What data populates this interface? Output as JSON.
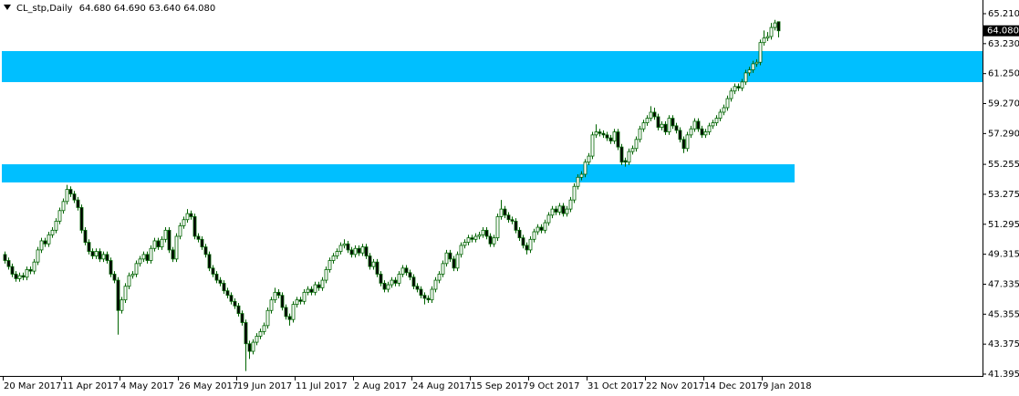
{
  "chart_data": {
    "type": "candlestick",
    "header": {
      "symbol": "CL_stp,Daily",
      "open": "64.680",
      "high": "64.690",
      "low": "63.640",
      "close": "64.080"
    },
    "last_price": {
      "value": 64.08,
      "label": "64.080"
    },
    "ylim": [
      41.395,
      65.21
    ],
    "yticks": [
      {
        "value": 65.21,
        "label": "65.210"
      },
      {
        "value": 63.23,
        "label": "63.230"
      },
      {
        "value": 61.25,
        "label": "61.250"
      },
      {
        "value": 59.27,
        "label": "59.270"
      },
      {
        "value": 57.29,
        "label": "57.290"
      },
      {
        "value": 55.255,
        "label": "55.255"
      },
      {
        "value": 53.275,
        "label": "53.275"
      },
      {
        "value": 51.295,
        "label": "51.295"
      },
      {
        "value": 49.315,
        "label": "49.315"
      },
      {
        "value": 47.335,
        "label": "47.335"
      },
      {
        "value": 45.355,
        "label": "45.355"
      },
      {
        "value": 43.375,
        "label": "43.375"
      },
      {
        "value": 41.395,
        "label": "41.395"
      }
    ],
    "up_color": "#ffffff",
    "down_color": "#000000",
    "line_color": "#006400",
    "zones": [
      {
        "from": 62.74,
        "to": 60.69,
        "color": "#00bfff"
      },
      {
        "from": 55.26,
        "to": 54.06,
        "color": "#00bfff"
      }
    ],
    "categories": [
      "20 Mar 2017",
      null,
      null,
      null,
      null,
      null,
      null,
      null,
      null,
      null,
      null,
      null,
      null,
      null,
      null,
      null,
      "11 Apr 2017",
      null,
      null,
      null,
      null,
      null,
      null,
      null,
      null,
      null,
      null,
      null,
      null,
      null,
      null,
      null,
      "4 May 2017",
      null,
      null,
      null,
      null,
      null,
      null,
      null,
      null,
      null,
      null,
      null,
      null,
      null,
      null,
      null,
      "26 May 2017",
      null,
      null,
      null,
      null,
      null,
      null,
      null,
      null,
      null,
      null,
      null,
      null,
      null,
      null,
      null,
      "19 Jun 2017",
      null,
      null,
      null,
      null,
      null,
      null,
      null,
      null,
      null,
      null,
      null,
      null,
      null,
      null,
      null,
      "11 Jul 2017",
      null,
      null,
      null,
      null,
      null,
      null,
      null,
      null,
      null,
      null,
      null,
      null,
      null,
      null,
      null,
      "2 Aug 2017",
      null,
      null,
      null,
      null,
      null,
      null,
      null,
      null,
      null,
      null,
      null,
      null,
      null,
      null,
      null,
      "24 Aug 2017",
      null,
      null,
      null,
      null,
      null,
      null,
      null,
      null,
      null,
      null,
      null,
      null,
      null,
      null,
      null,
      "15 Sep 2017",
      null,
      null,
      null,
      null,
      null,
      null,
      null,
      null,
      null,
      null,
      null,
      null,
      null,
      null,
      null,
      "9 Oct 2017",
      null,
      null,
      null,
      null,
      null,
      null,
      null,
      null,
      null,
      null,
      null,
      null,
      null,
      null,
      null,
      "31 Oct 2017",
      null,
      null,
      null,
      null,
      null,
      null,
      null,
      null,
      null,
      null,
      null,
      null,
      null,
      null,
      null,
      "22 Nov 2017",
      null,
      null,
      null,
      null,
      null,
      null,
      null,
      null,
      null,
      null,
      null,
      null,
      null,
      null,
      null,
      "14 Dec 2017",
      null,
      null,
      null,
      null,
      null,
      null,
      null,
      null,
      null,
      null,
      null,
      null,
      null,
      null,
      null,
      "9 Jan 2018",
      null,
      null,
      null,
      null
    ],
    "ohlc": [
      [
        49.3,
        49.5,
        48.7,
        48.9
      ],
      [
        48.9,
        49.1,
        48.3,
        48.5
      ],
      [
        48.5,
        48.7,
        47.8,
        48.0
      ],
      [
        48.0,
        48.2,
        47.5,
        47.7
      ],
      [
        47.7,
        48.1,
        47.5,
        47.9
      ],
      [
        47.9,
        48.1,
        47.6,
        47.8
      ],
      [
        47.8,
        48.5,
        47.6,
        48.3
      ],
      [
        48.3,
        48.5,
        48.0,
        48.2
      ],
      [
        48.2,
        49.0,
        48.0,
        48.8
      ],
      [
        48.8,
        49.8,
        48.6,
        49.6
      ],
      [
        49.6,
        50.4,
        49.4,
        50.2
      ],
      [
        50.2,
        50.4,
        49.8,
        50.0
      ],
      [
        50.0,
        50.8,
        49.8,
        50.6
      ],
      [
        50.6,
        51.1,
        50.4,
        50.9
      ],
      [
        50.9,
        51.7,
        50.7,
        51.5
      ],
      [
        51.5,
        52.4,
        51.3,
        52.2
      ],
      [
        52.2,
        53.0,
        52.0,
        52.8
      ],
      [
        52.8,
        53.9,
        52.6,
        53.6
      ],
      [
        53.6,
        53.8,
        53.1,
        53.3
      ],
      [
        53.3,
        53.5,
        52.7,
        52.9
      ],
      [
        52.9,
        53.1,
        52.2,
        52.4
      ],
      [
        52.4,
        52.6,
        50.7,
        50.9
      ],
      [
        50.9,
        51.1,
        49.9,
        50.1
      ],
      [
        50.1,
        50.3,
        49.3,
        49.5
      ],
      [
        49.5,
        49.7,
        49.0,
        49.2
      ],
      [
        49.2,
        49.7,
        49.0,
        49.5
      ],
      [
        49.5,
        49.7,
        48.8,
        49.0
      ],
      [
        49.0,
        49.5,
        48.8,
        49.3
      ],
      [
        49.3,
        49.5,
        48.7,
        48.9
      ],
      [
        48.9,
        49.1,
        47.8,
        48.0
      ],
      [
        48.0,
        48.2,
        47.4,
        47.6
      ],
      [
        47.6,
        47.8,
        44.0,
        45.6
      ],
      [
        45.6,
        46.5,
        45.4,
        46.3
      ],
      [
        46.3,
        47.4,
        46.1,
        47.2
      ],
      [
        47.2,
        48.1,
        47.0,
        47.9
      ],
      [
        47.9,
        48.2,
        47.7,
        48.0
      ],
      [
        48.0,
        48.9,
        47.8,
        48.7
      ],
      [
        48.7,
        49.2,
        48.5,
        49.0
      ],
      [
        49.0,
        49.5,
        48.8,
        49.3
      ],
      [
        49.3,
        49.5,
        48.7,
        48.9
      ],
      [
        48.9,
        49.9,
        48.7,
        49.7
      ],
      [
        49.7,
        50.4,
        49.5,
        50.2
      ],
      [
        50.2,
        50.4,
        49.6,
        49.8
      ],
      [
        49.8,
        50.5,
        49.6,
        50.3
      ],
      [
        50.3,
        51.1,
        50.1,
        50.9
      ],
      [
        50.9,
        51.1,
        49.4,
        49.6
      ],
      [
        49.6,
        49.8,
        48.8,
        49.0
      ],
      [
        49.0,
        50.7,
        48.8,
        50.5
      ],
      [
        50.5,
        51.4,
        50.3,
        51.2
      ],
      [
        51.2,
        51.8,
        51.0,
        51.6
      ],
      [
        51.6,
        52.3,
        51.4,
        52.0
      ],
      [
        52.0,
        52.2,
        51.6,
        51.8
      ],
      [
        51.8,
        52.0,
        50.3,
        50.5
      ],
      [
        50.5,
        50.7,
        50.1,
        50.3
      ],
      [
        50.3,
        50.5,
        49.6,
        49.8
      ],
      [
        49.8,
        50.0,
        49.1,
        49.3
      ],
      [
        49.3,
        49.5,
        48.2,
        48.4
      ],
      [
        48.4,
        48.6,
        47.8,
        48.0
      ],
      [
        48.0,
        48.2,
        47.4,
        47.6
      ],
      [
        47.6,
        47.8,
        47.2,
        47.4
      ],
      [
        47.4,
        47.6,
        46.7,
        46.9
      ],
      [
        46.9,
        47.1,
        46.4,
        46.6
      ],
      [
        46.6,
        46.8,
        46.0,
        46.2
      ],
      [
        46.2,
        46.4,
        45.7,
        45.9
      ],
      [
        45.9,
        46.1,
        45.2,
        45.4
      ],
      [
        45.4,
        45.6,
        44.6,
        44.8
      ],
      [
        44.8,
        45.0,
        41.6,
        43.4
      ],
      [
        43.4,
        43.6,
        42.4,
        42.9
      ],
      [
        42.9,
        43.7,
        42.7,
        43.5
      ],
      [
        43.5,
        44.1,
        43.3,
        43.9
      ],
      [
        43.9,
        44.4,
        43.7,
        44.2
      ],
      [
        44.2,
        44.8,
        44.0,
        44.6
      ],
      [
        44.6,
        45.8,
        44.4,
        45.6
      ],
      [
        45.6,
        46.5,
        45.4,
        46.3
      ],
      [
        46.3,
        47.1,
        46.1,
        46.8
      ],
      [
        46.8,
        47.0,
        46.4,
        46.6
      ],
      [
        46.6,
        46.8,
        45.6,
        45.8
      ],
      [
        45.8,
        46.0,
        45.0,
        45.2
      ],
      [
        45.2,
        45.4,
        44.6,
        45.0
      ],
      [
        45.0,
        46.2,
        44.8,
        46.0
      ],
      [
        46.0,
        46.5,
        45.8,
        46.3
      ],
      [
        46.3,
        46.5,
        46.0,
        46.2
      ],
      [
        46.2,
        47.0,
        46.0,
        46.8
      ],
      [
        46.8,
        47.2,
        46.6,
        47.0
      ],
      [
        47.0,
        47.2,
        46.6,
        46.8
      ],
      [
        46.8,
        47.5,
        46.6,
        47.3
      ],
      [
        47.3,
        47.5,
        46.9,
        47.1
      ],
      [
        47.1,
        47.8,
        46.9,
        47.6
      ],
      [
        47.6,
        48.5,
        47.4,
        48.3
      ],
      [
        48.3,
        49.1,
        48.1,
        48.9
      ],
      [
        48.9,
        49.4,
        48.7,
        49.2
      ],
      [
        49.2,
        49.7,
        49.0,
        49.5
      ],
      [
        49.5,
        50.1,
        49.3,
        49.9
      ],
      [
        49.9,
        50.3,
        49.7,
        50.0
      ],
      [
        50.0,
        50.2,
        49.4,
        49.6
      ],
      [
        49.6,
        49.8,
        49.1,
        49.3
      ],
      [
        49.3,
        49.9,
        49.1,
        49.7
      ],
      [
        49.7,
        49.9,
        49.2,
        49.4
      ],
      [
        49.4,
        50.0,
        49.2,
        49.8
      ],
      [
        49.8,
        50.0,
        49.0,
        49.2
      ],
      [
        49.2,
        49.4,
        48.3,
        48.5
      ],
      [
        48.5,
        49.0,
        48.3,
        48.8
      ],
      [
        48.8,
        49.0,
        47.8,
        48.0
      ],
      [
        48.0,
        48.2,
        47.2,
        47.4
      ],
      [
        47.4,
        47.6,
        46.8,
        47.0
      ],
      [
        47.0,
        47.5,
        46.8,
        47.3
      ],
      [
        47.3,
        47.8,
        47.1,
        47.6
      ],
      [
        47.6,
        47.8,
        47.2,
        47.4
      ],
      [
        47.4,
        48.2,
        47.2,
        48.0
      ],
      [
        48.0,
        48.6,
        47.8,
        48.4
      ],
      [
        48.4,
        48.6,
        47.9,
        48.1
      ],
      [
        48.1,
        48.3,
        47.6,
        47.8
      ],
      [
        47.8,
        48.0,
        47.0,
        47.2
      ],
      [
        47.2,
        47.4,
        46.8,
        47.0
      ],
      [
        47.0,
        47.2,
        46.4,
        46.6
      ],
      [
        46.6,
        46.8,
        46.0,
        46.4
      ],
      [
        46.4,
        46.6,
        46.1,
        46.3
      ],
      [
        46.3,
        47.2,
        46.1,
        47.0
      ],
      [
        47.0,
        47.8,
        46.8,
        47.6
      ],
      [
        47.6,
        48.2,
        47.4,
        48.0
      ],
      [
        48.0,
        48.9,
        47.8,
        48.7
      ],
      [
        48.7,
        49.6,
        48.5,
        49.4
      ],
      [
        49.4,
        49.6,
        48.8,
        49.0
      ],
      [
        49.0,
        49.2,
        48.2,
        48.4
      ],
      [
        48.4,
        49.5,
        48.2,
        49.3
      ],
      [
        49.3,
        50.1,
        49.1,
        49.9
      ],
      [
        49.9,
        50.3,
        49.7,
        50.1
      ],
      [
        50.1,
        50.6,
        49.9,
        50.4
      ],
      [
        50.4,
        50.6,
        50.1,
        50.3
      ],
      [
        50.3,
        50.7,
        50.1,
        50.5
      ],
      [
        50.5,
        50.8,
        50.3,
        50.6
      ],
      [
        50.6,
        51.1,
        50.4,
        50.9
      ],
      [
        50.9,
        51.1,
        50.3,
        50.5
      ],
      [
        50.5,
        50.7,
        49.8,
        50.0
      ],
      [
        50.0,
        50.6,
        49.8,
        50.4
      ],
      [
        50.4,
        52.0,
        50.2,
        51.8
      ],
      [
        51.8,
        52.9,
        51.6,
        52.3
      ],
      [
        52.3,
        52.5,
        51.7,
        51.9
      ],
      [
        51.9,
        52.1,
        51.4,
        51.6
      ],
      [
        51.6,
        51.8,
        51.3,
        51.5
      ],
      [
        51.5,
        51.7,
        50.7,
        50.9
      ],
      [
        50.9,
        51.1,
        50.2,
        50.4
      ],
      [
        50.4,
        50.6,
        49.7,
        49.9
      ],
      [
        49.9,
        50.1,
        49.3,
        49.6
      ],
      [
        49.6,
        50.5,
        49.4,
        50.3
      ],
      [
        50.3,
        51.0,
        50.1,
        50.8
      ],
      [
        50.8,
        51.3,
        50.6,
        51.1
      ],
      [
        51.1,
        51.3,
        50.7,
        50.9
      ],
      [
        50.9,
        51.6,
        50.7,
        51.4
      ],
      [
        51.4,
        52.1,
        51.2,
        51.9
      ],
      [
        51.9,
        52.5,
        51.7,
        52.3
      ],
      [
        52.3,
        52.5,
        51.9,
        52.1
      ],
      [
        52.1,
        52.7,
        51.9,
        52.5
      ],
      [
        52.5,
        52.7,
        51.8,
        52.0
      ],
      [
        52.0,
        52.5,
        51.8,
        52.3
      ],
      [
        52.3,
        53.1,
        52.1,
        52.9
      ],
      [
        52.9,
        54.0,
        52.7,
        53.8
      ],
      [
        53.8,
        54.6,
        53.6,
        54.4
      ],
      [
        54.4,
        54.8,
        54.2,
        54.6
      ],
      [
        54.6,
        55.6,
        54.4,
        55.4
      ],
      [
        55.4,
        56.0,
        55.2,
        55.8
      ],
      [
        55.8,
        57.4,
        55.6,
        57.2
      ],
      [
        57.2,
        57.9,
        57.0,
        57.4
      ],
      [
        57.4,
        57.6,
        57.1,
        57.3
      ],
      [
        57.3,
        57.5,
        57.0,
        57.2
      ],
      [
        57.2,
        57.4,
        56.8,
        57.0
      ],
      [
        57.0,
        57.2,
        56.6,
        56.8
      ],
      [
        56.8,
        57.6,
        56.6,
        57.4
      ],
      [
        57.4,
        57.6,
        56.2,
        56.4
      ],
      [
        56.4,
        56.6,
        55.2,
        55.4
      ],
      [
        55.5,
        55.7,
        55.1,
        55.4
      ],
      [
        55.4,
        56.3,
        55.2,
        56.1
      ],
      [
        56.1,
        56.5,
        55.9,
        56.3
      ],
      [
        56.3,
        57.1,
        56.1,
        56.9
      ],
      [
        56.9,
        57.8,
        56.7,
        57.6
      ],
      [
        57.6,
        58.2,
        57.4,
        58.0
      ],
      [
        58.0,
        58.5,
        57.8,
        58.3
      ],
      [
        58.3,
        59.1,
        58.1,
        58.7
      ],
      [
        58.7,
        59.0,
        58.2,
        58.4
      ],
      [
        58.4,
        58.6,
        57.5,
        57.7
      ],
      [
        57.7,
        58.1,
        57.5,
        57.9
      ],
      [
        57.9,
        58.1,
        57.2,
        57.4
      ],
      [
        57.4,
        58.5,
        57.2,
        58.3
      ],
      [
        58.3,
        58.5,
        57.6,
        57.8
      ],
      [
        57.8,
        58.0,
        57.3,
        57.5
      ],
      [
        57.5,
        57.7,
        56.7,
        56.9
      ],
      [
        56.9,
        57.1,
        56.0,
        56.3
      ],
      [
        56.3,
        57.4,
        56.1,
        57.2
      ],
      [
        57.2,
        57.8,
        57.0,
        57.6
      ],
      [
        57.6,
        58.3,
        57.4,
        58.1
      ],
      [
        58.1,
        58.3,
        57.4,
        57.6
      ],
      [
        57.6,
        57.8,
        57.0,
        57.2
      ],
      [
        57.2,
        57.6,
        57.0,
        57.4
      ],
      [
        57.4,
        58.0,
        57.2,
        57.8
      ],
      [
        57.8,
        58.2,
        57.6,
        58.0
      ],
      [
        58.0,
        58.5,
        57.8,
        58.3
      ],
      [
        58.3,
        58.9,
        58.1,
        58.7
      ],
      [
        58.7,
        59.2,
        58.5,
        59.0
      ],
      [
        59.0,
        59.8,
        58.8,
        59.6
      ],
      [
        59.6,
        60.3,
        59.4,
        60.1
      ],
      [
        60.1,
        60.6,
        59.9,
        60.4
      ],
      [
        60.4,
        60.6,
        60.1,
        60.3
      ],
      [
        60.3,
        60.9,
        60.1,
        60.7
      ],
      [
        60.7,
        61.5,
        60.5,
        61.3
      ],
      [
        61.3,
        61.7,
        61.1,
        61.5
      ],
      [
        61.5,
        62.1,
        61.3,
        61.9
      ],
      [
        61.9,
        62.2,
        61.7,
        62.0
      ],
      [
        62.0,
        63.5,
        61.8,
        63.3
      ],
      [
        63.3,
        64.1,
        63.1,
        63.6
      ],
      [
        63.6,
        64.0,
        63.4,
        63.7
      ],
      [
        63.7,
        64.6,
        63.5,
        64.3
      ],
      [
        64.3,
        64.8,
        64.1,
        64.6
      ],
      [
        64.68,
        64.69,
        63.64,
        64.08
      ]
    ]
  }
}
